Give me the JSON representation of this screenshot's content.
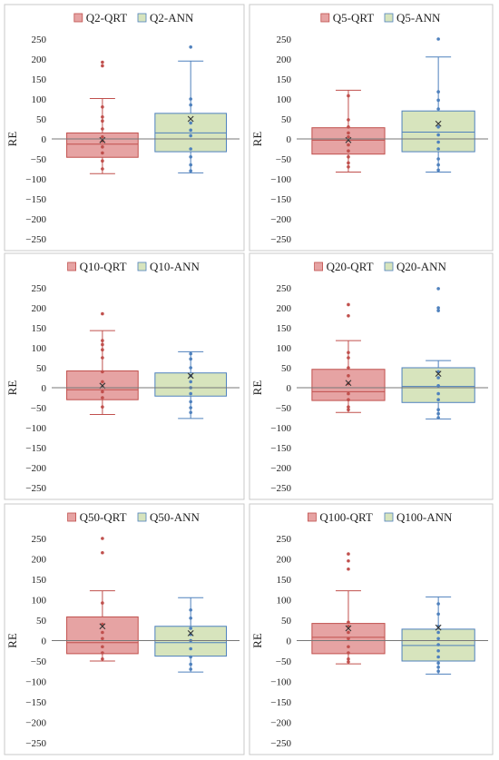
{
  "colors": {
    "qrt_fill": "#e6a3a3",
    "qrt_stroke": "#c0504d",
    "ann_fill": "#d7e4bd",
    "ann_stroke": "#4f81bd",
    "zero_line": "#777777",
    "panel_border": "#c9c9c9"
  },
  "chart_data": [
    {
      "type": "box",
      "ylabel": "RE",
      "ylim": [
        -250,
        250
      ],
      "yticks": [
        "250",
        "200",
        "150",
        "100",
        "50",
        "0",
        "−50",
        "−100",
        "−150",
        "−200",
        "−250"
      ],
      "series": [
        {
          "name": "Q2-QRT",
          "whisker_low": -87,
          "q1": -46,
          "median": -13,
          "q3": 15,
          "whisker_high": 101,
          "mean": -3,
          "points": [
            192,
            183,
            80,
            55,
            45,
            25,
            5,
            -5,
            -20,
            -35,
            -55,
            -75
          ]
        },
        {
          "name": "Q2-ANN",
          "whisker_low": -85,
          "q1": -32,
          "median": 15,
          "q3": 64,
          "whisker_high": 195,
          "mean": 50,
          "points": [
            230,
            100,
            85,
            40,
            22,
            8,
            -25,
            -45,
            -65,
            -80
          ]
        }
      ]
    },
    {
      "type": "box",
      "ylabel": "RE",
      "ylim": [
        -250,
        250
      ],
      "yticks": [
        "250",
        "200",
        "150",
        "100",
        "50",
        "0",
        "−50",
        "−100",
        "−150",
        "−200",
        "−250"
      ],
      "series": [
        {
          "name": "Q5-QRT",
          "whisker_low": -83,
          "q1": -38,
          "median": -3,
          "q3": 28,
          "whisker_high": 122,
          "mean": -3,
          "points": [
            108,
            48,
            30,
            15,
            5,
            -15,
            -30,
            -45,
            -60,
            -70
          ]
        },
        {
          "name": "Q5-ANN",
          "whisker_low": -83,
          "q1": -32,
          "median": 17,
          "q3": 70,
          "whisker_high": 205,
          "mean": 38,
          "points": [
            250,
            118,
            97,
            75,
            30,
            10,
            -8,
            -25,
            -50,
            -65,
            -78
          ]
        }
      ]
    },
    {
      "type": "box",
      "ylabel": "RE",
      "ylim": [
        -250,
        250
      ],
      "yticks": [
        "250",
        "200",
        "150",
        "100",
        "50",
        "0",
        "−50",
        "−100",
        "−150",
        "−200",
        "−250"
      ],
      "series": [
        {
          "name": "Q10-QRT",
          "whisker_low": -67,
          "q1": -30,
          "median": -5,
          "q3": 42,
          "whisker_high": 143,
          "mean": 5,
          "points": [
            185,
            118,
            108,
            95,
            75,
            40,
            15,
            -10,
            -25,
            -48
          ]
        },
        {
          "name": "Q10-ANN",
          "whisker_low": -77,
          "q1": -21,
          "median": 0,
          "q3": 37,
          "whisker_high": 90,
          "mean": 30,
          "points": [
            85,
            72,
            50,
            30,
            15,
            0,
            -15,
            -35,
            -50,
            -62
          ]
        }
      ]
    },
    {
      "type": "box",
      "ylabel": "RE",
      "ylim": [
        -250,
        250
      ],
      "yticks": [
        "250",
        "200",
        "150",
        "100",
        "50",
        "0",
        "−50",
        "−100",
        "−150",
        "−200",
        "−250"
      ],
      "series": [
        {
          "name": "Q20-QRT",
          "whisker_low": -62,
          "q1": -32,
          "median": -10,
          "q3": 46,
          "whisker_high": 118,
          "mean": 12,
          "points": [
            208,
            180,
            88,
            75,
            50,
            30,
            10,
            -15,
            -30,
            -48,
            -55
          ]
        },
        {
          "name": "Q20-ANN",
          "whisker_low": -78,
          "q1": -37,
          "median": 3,
          "q3": 50,
          "whisker_high": 68,
          "mean": 35,
          "points": [
            248,
            200,
            193,
            40,
            25,
            5,
            -15,
            -30,
            -55,
            -65,
            -75
          ]
        }
      ]
    },
    {
      "type": "box",
      "ylabel": "RE",
      "ylim": [
        -250,
        250
      ],
      "yticks": [
        "250",
        "200",
        "150",
        "100",
        "50",
        "0",
        "−50",
        "−100",
        "−150",
        "−200",
        "−250"
      ],
      "series": [
        {
          "name": "Q50-QRT",
          "whisker_low": -50,
          "q1": -32,
          "median": -5,
          "q3": 58,
          "whisker_high": 122,
          "mean": 35,
          "points": [
            250,
            215,
            92,
            40,
            20,
            5,
            -15,
            -30,
            -45
          ]
        },
        {
          "name": "Q50-ANN",
          "whisker_low": -77,
          "q1": -38,
          "median": -5,
          "q3": 35,
          "whisker_high": 105,
          "mean": 18,
          "points": [
            75,
            55,
            30,
            15,
            0,
            -20,
            -40,
            -58,
            -70
          ]
        }
      ]
    },
    {
      "type": "box",
      "ylabel": "RE",
      "ylim": [
        -250,
        250
      ],
      "yticks": [
        "250",
        "200",
        "150",
        "100",
        "50",
        "0",
        "−50",
        "−100",
        "−150",
        "−200",
        "−250"
      ],
      "series": [
        {
          "name": "Q100-QRT",
          "whisker_low": -57,
          "q1": -32,
          "median": 8,
          "q3": 42,
          "whisker_high": 122,
          "mean": 30,
          "points": [
            212,
            195,
            175,
            45,
            35,
            20,
            5,
            -15,
            -30,
            -45,
            -52
          ]
        },
        {
          "name": "Q100-ANN",
          "whisker_low": -82,
          "q1": -50,
          "median": -12,
          "q3": 28,
          "whisker_high": 107,
          "mean": 32,
          "points": [
            90,
            65,
            35,
            20,
            5,
            -10,
            -25,
            -40,
            -55,
            -65,
            -75
          ]
        }
      ]
    }
  ]
}
